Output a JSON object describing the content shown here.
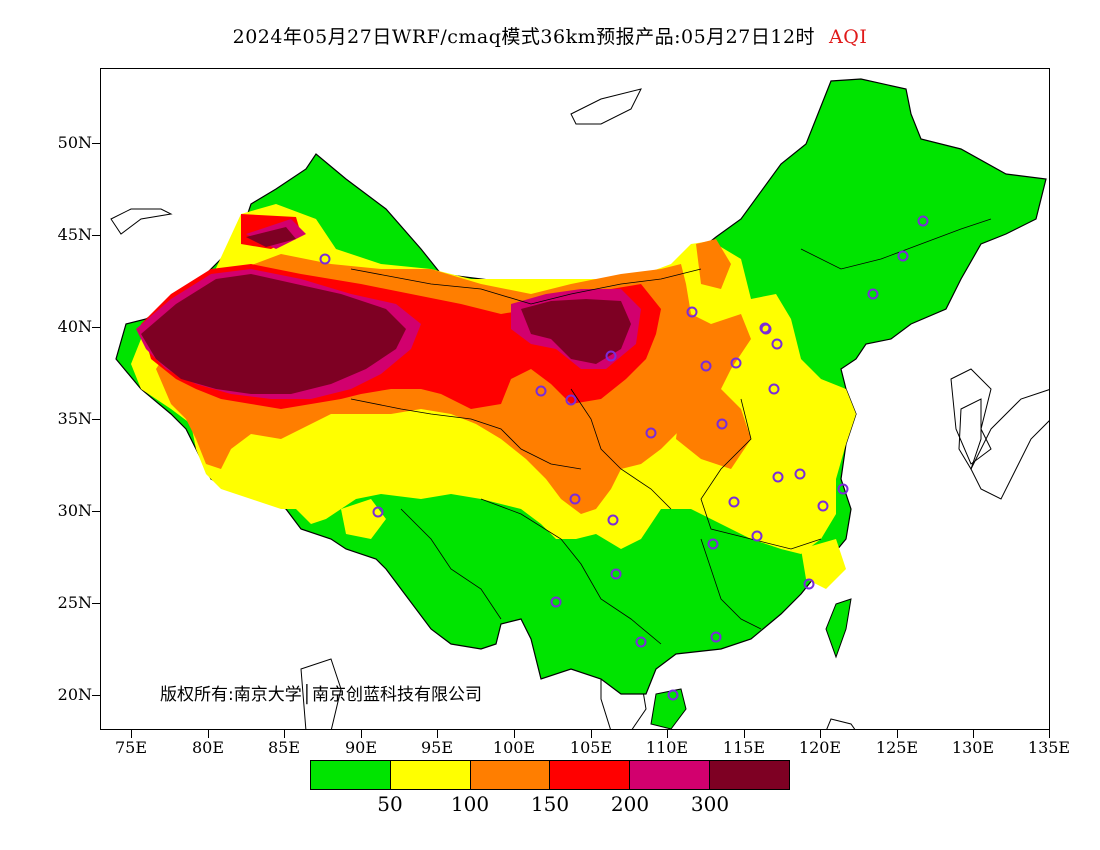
{
  "title": {
    "text": "2024年05月27日WRF/cmaq模式36km预报产品:05月27日12时",
    "variable": "AQI",
    "variable_color": "#e01a1a"
  },
  "axes": {
    "y_labels": [
      "50N",
      "45N",
      "40N",
      "35N",
      "30N",
      "25N",
      "20N"
    ],
    "x_labels": [
      "75E",
      "80E",
      "85E",
      "90E",
      "95E",
      "100E",
      "105E",
      "110E",
      "115E",
      "120E",
      "125E",
      "130E",
      "135E"
    ]
  },
  "copyright": "版权所有:南京大学│南京创蓝科技有限公司",
  "legend": {
    "colors": [
      "#00e400",
      "#ffff00",
      "#ff7e00",
      "#ff0000",
      "#d2006e",
      "#7e0023"
    ],
    "labels": [
      "50",
      "100",
      "150",
      "200",
      "300"
    ]
  },
  "map": {
    "projection": "lat-lon",
    "lon_range": [
      73,
      135
    ],
    "lat_range": [
      18,
      54
    ],
    "land_color": "#00e400",
    "border_color": "#000000",
    "station_marker_color": "#7a2cd9"
  }
}
